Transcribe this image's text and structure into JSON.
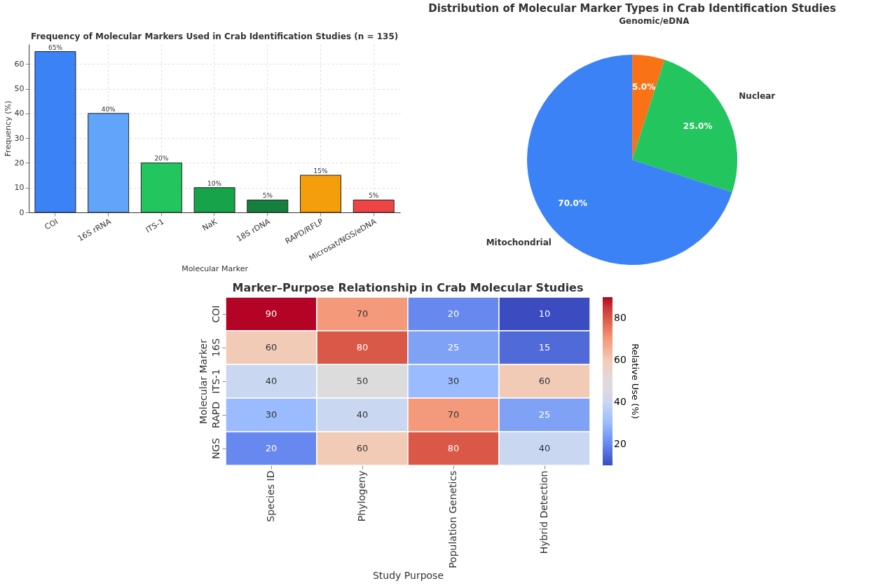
{
  "chart_data": [
    {
      "type": "bar",
      "title": "Frequency of Molecular Markers Used in Crab Identification Studies (n = 135)",
      "xlabel": "Molecular Marker",
      "ylabel": "Frequency (%)",
      "categories": [
        "COI",
        "16S rRNA",
        "ITS-1",
        "NaK",
        "18S rDNA",
        "RAPD/RFLP",
        "Microsat/NGS/eDNA"
      ],
      "values": [
        65,
        40,
        20,
        10,
        5,
        15,
        5
      ],
      "colors": [
        "#3b82f6",
        "#60a5fa",
        "#22c55e",
        "#16a34a",
        "#15803d",
        "#f59e0b",
        "#ef4444"
      ],
      "value_labels": [
        "65%",
        "40%",
        "20%",
        "10%",
        "5%",
        "15%",
        "5%"
      ],
      "ylim": [
        0,
        68
      ],
      "yticks": [
        0,
        10,
        20,
        30,
        40,
        50,
        60
      ],
      "grid": true
    },
    {
      "type": "pie",
      "title": "Distribution of Molecular Marker Types in Crab Identification Studies",
      "categories": [
        "Genomic/eDNA",
        "Nuclear",
        "Mitochondrial"
      ],
      "values": [
        5,
        25,
        70
      ],
      "colors": [
        "#f97316",
        "#22c55e",
        "#3b82f6"
      ],
      "value_labels": [
        "5.0%",
        "25.0%",
        "70.0%"
      ]
    },
    {
      "type": "heatmap",
      "title": "Marker–Purpose Relationship in Crab Molecular Studies",
      "xlabel": "Study Purpose",
      "ylabel": "Molecular Marker",
      "clabel": "Relative Use (%)",
      "categories": [
        "Species ID",
        "Phylogeny",
        "Population Genetics",
        "Hybrid Detection"
      ],
      "y_categories": [
        "COI",
        "16S",
        "ITS-1",
        "RAPD",
        "NGS"
      ],
      "cells": [
        [
          90,
          70,
          20,
          10
        ],
        [
          60,
          80,
          25,
          15
        ],
        [
          40,
          50,
          30,
          60
        ],
        [
          30,
          40,
          70,
          25
        ],
        [
          20,
          60,
          80,
          40
        ]
      ],
      "data_labels": true,
      "clim": [
        10,
        90
      ],
      "cticks": [
        20,
        40,
        60,
        80
      ]
    }
  ]
}
